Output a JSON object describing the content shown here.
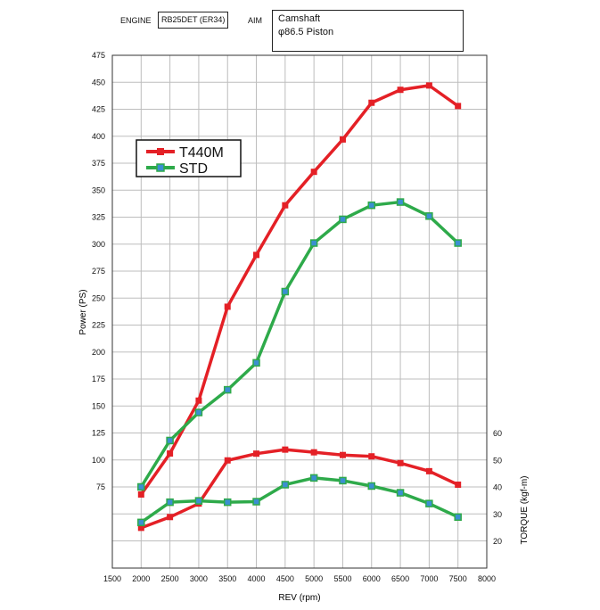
{
  "header": {
    "engine_label": "ENGINE",
    "engine_value": "RB25DET (ER34)",
    "aim_label": "AIM",
    "aim_line1": "Camshaft",
    "aim_line2": "φ86.5 Piston"
  },
  "colors": {
    "t440m": "#e42026",
    "std": "#2eaa4a",
    "grid": "#bdbdbd",
    "frame": "#333333"
  },
  "chart_data": {
    "type": "line",
    "xlabel": "REV (rpm)",
    "ylabel_left": "Power (PS)",
    "ylabel_right": "TORQUE (kgf-m)",
    "xlim": [
      1500,
      8000
    ],
    "ylim_left": [
      0,
      475
    ],
    "ylim_right": [
      0,
      80
    ],
    "grid": true,
    "legend_position": "upper-left",
    "x_ticks": [
      1500,
      2000,
      2500,
      3000,
      3500,
      4000,
      4500,
      5000,
      5500,
      6000,
      6500,
      7000,
      7500,
      8000
    ],
    "y_ticks_left": [
      75,
      100,
      125,
      150,
      175,
      200,
      225,
      250,
      275,
      300,
      325,
      350,
      375,
      400,
      425,
      450,
      475
    ],
    "y_ticks_right": [
      20,
      30,
      40,
      50,
      60
    ],
    "x": [
      2000,
      2500,
      3000,
      3500,
      4000,
      4500,
      5000,
      5500,
      6000,
      6500,
      7000,
      7500
    ],
    "series": [
      {
        "name": "T440M",
        "quantity": "power",
        "axis": "left",
        "values": [
          68,
          106,
          155,
          242,
          290,
          336,
          367,
          397,
          431,
          443,
          447,
          428
        ]
      },
      {
        "name": "STD",
        "quantity": "power",
        "axis": "left",
        "values": [
          75,
          118,
          144,
          165,
          190,
          256,
          301,
          323,
          336,
          339,
          326,
          301
        ]
      },
      {
        "name": "T440M",
        "quantity": "torque",
        "axis": "right",
        "values": [
          25.0,
          29.0,
          34.0,
          50.0,
          52.5,
          54.0,
          53.0,
          52.0,
          51.5,
          49.0,
          46.0,
          41.0
        ]
      },
      {
        "name": "STD",
        "quantity": "torque",
        "axis": "right",
        "values": [
          27.0,
          34.5,
          35.0,
          34.5,
          34.7,
          41.0,
          43.5,
          42.5,
          40.5,
          38.0,
          34.0,
          29.0
        ]
      }
    ]
  }
}
